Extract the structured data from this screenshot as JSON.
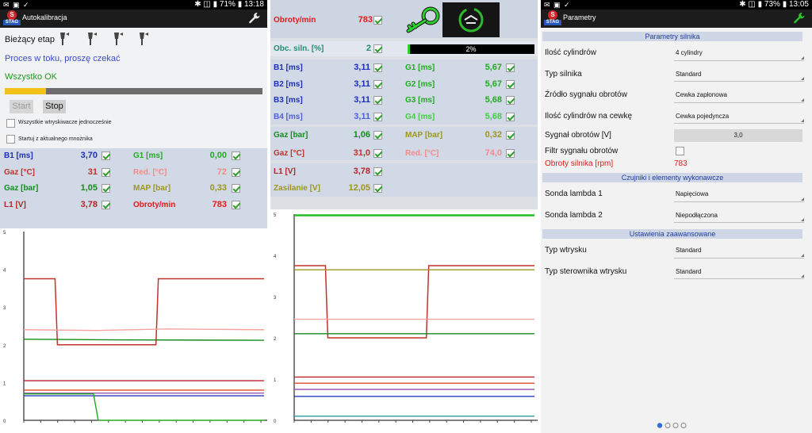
{
  "panel1": {
    "status": {
      "left": "✉ ▣ ✓",
      "right": "✱ ◫ ▮ 71% ▮ 13:18"
    },
    "logo_letter": "S",
    "logo_text": "STAG",
    "title": "Autokalibracja",
    "stage_label": "Bieżący etap",
    "process_text": "Proces w toku, proszę czekać",
    "ok_text": "Wszystko OK",
    "progress": 0.16,
    "start_label": "Start",
    "stop_label": "Stop",
    "opt1": "Wszystkie wtryskiwacze jednocześnie",
    "opt2": "Startuj z aktualnego mnożnika",
    "params": [
      {
        "label": "B1 [ms]",
        "value": "3,70",
        "color": "#1c2fb8"
      },
      {
        "label": "G1 [ms]",
        "value": "0,00",
        "color": "#22aa22"
      },
      {
        "label": "Gaz [°C]",
        "value": "31",
        "color": "#c0322a"
      },
      {
        "label": "Red. [°C]",
        "value": "72",
        "color": "#f08c88"
      },
      {
        "label": "Gaz [bar]",
        "value": "1,05",
        "color": "#158a20"
      },
      {
        "label": "MAP [bar]",
        "value": "0,33",
        "color": "#9a961e"
      },
      {
        "label": "L1 [V]",
        "value": "3,78",
        "color": "#b5252a"
      },
      {
        "label": "Obroty/min",
        "value": "783",
        "color": "#e11a1a"
      }
    ],
    "axis_ticks": [
      "5",
      "4",
      "3",
      "2",
      "1",
      "0"
    ]
  },
  "panel2": {
    "rows": [
      {
        "label": "Obroty/min",
        "value": "783",
        "color": "#e11a1a"
      },
      {
        "label": "Obc. siln. [%]",
        "value": "2",
        "color": "#1f8f6f"
      }
    ],
    "load_percent": "2%",
    "load_fraction": 0.02,
    "inj": [
      {
        "label": "B1 [ms]",
        "value": "3,11",
        "color": "#1c2fb8"
      },
      {
        "label": "G1 [ms]",
        "value": "5,67",
        "color": "#22aa22"
      },
      {
        "label": "B2 [ms]",
        "value": "3,11",
        "color": "#1c2fb8"
      },
      {
        "label": "G2 [ms]",
        "value": "5,67",
        "color": "#22aa22"
      },
      {
        "label": "B3 [ms]",
        "value": "3,11",
        "color": "#1c2fb8"
      },
      {
        "label": "G3 [ms]",
        "value": "5,68",
        "color": "#22aa22"
      },
      {
        "label": "B4 [ms]",
        "value": "3,11",
        "color": "#5060d8"
      },
      {
        "label": "G4 [ms]",
        "value": "5,68",
        "color": "#44cc44"
      }
    ],
    "gas": [
      {
        "label": "Gaz [bar]",
        "value": "1,06",
        "color": "#158a20"
      },
      {
        "label": "MAP [bar]",
        "value": "0,32",
        "color": "#9a961e"
      },
      {
        "label": "Gaz [°C]",
        "value": "31,0",
        "color": "#c0322a"
      },
      {
        "label": "Red. [°C]",
        "value": "74,0",
        "color": "#f08c88"
      }
    ],
    "volt": [
      {
        "label": "L1 [V]",
        "value": "3,78",
        "color": "#b5252a"
      },
      {
        "label": "Zasilanie [V]",
        "value": "12,05",
        "color": "#9a961e"
      }
    ],
    "axis_ticks": [
      "5",
      "4",
      "3",
      "2",
      "1",
      "0"
    ]
  },
  "panel3": {
    "status": {
      "left": "✉ ▣ ✓",
      "right": "✱ ◫ ▮ 73% ▮ 13:05"
    },
    "title": "Parametry",
    "sections": [
      {
        "header": "Parametry silnika",
        "items": [
          {
            "label": "Ilość cylindrów",
            "value": "4 cylindry",
            "type": "select"
          },
          {
            "label": "Typ silnika",
            "value": "Standard",
            "type": "select"
          },
          {
            "label": "Źródło sygnału obrotów",
            "value": "Cewka zapłonowa",
            "type": "select"
          },
          {
            "label": "Ilość cylindrów na cewkę",
            "value": "Cewka pojedyncza",
            "type": "select"
          },
          {
            "label": "Sygnał obrotów [V]",
            "value": "3,0",
            "type": "field"
          },
          {
            "label": "Filtr sygnału obrotów",
            "value": "",
            "type": "check"
          },
          {
            "label": "Obroty silnika [rpm]",
            "value": "783",
            "type": "rpm"
          }
        ]
      },
      {
        "header": "Czujniki i elementy wykonawcze",
        "items": [
          {
            "label": "Sonda lambda 1",
            "value": "Napięciowa",
            "type": "select"
          },
          {
            "label": "Sonda lambda 2",
            "value": "Niepodłączona",
            "type": "select"
          }
        ]
      },
      {
        "header": "Ustawienia zaawansowane",
        "items": [
          {
            "label": "Typ wtrysku",
            "value": "Standard",
            "type": "select"
          },
          {
            "label": "Typ sterownika wtrysku",
            "value": "Standard",
            "type": "select"
          }
        ]
      }
    ]
  }
}
